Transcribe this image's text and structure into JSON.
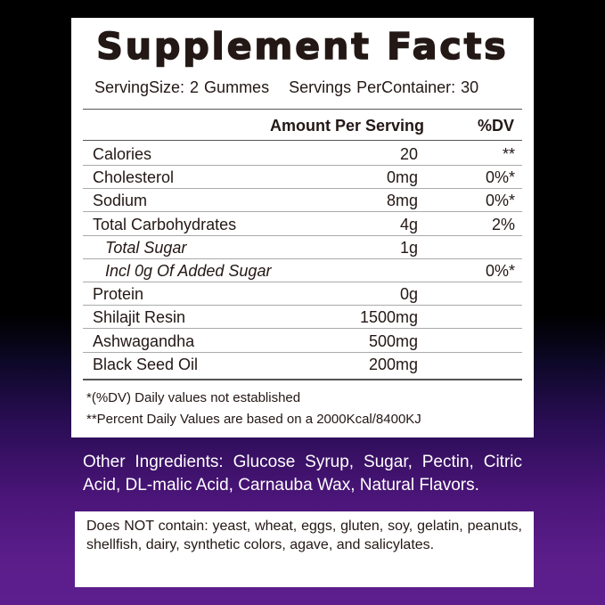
{
  "title": "Supplement Facts",
  "serving_size": "ServingSize: 2 Gummes",
  "servings_per_container": "Servings PerContainer: 30",
  "header": {
    "amount": "Amount Per Serving",
    "dv": "%DV"
  },
  "rows": [
    {
      "name": "Calories",
      "amount": "20",
      "dv": "**"
    },
    {
      "name": "Cholesterol",
      "amount": "0mg",
      "dv": "0%*"
    },
    {
      "name": "Sodium",
      "amount": "8mg",
      "dv": "0%*"
    },
    {
      "name": "Total Carbohydrates",
      "amount": "4g",
      "dv": "2%"
    },
    {
      "name": "Total Sugar",
      "amount": "1g",
      "dv": "",
      "indent": true
    },
    {
      "name": "Incl 0g Of Added Sugar",
      "amount": "",
      "dv": "0%*",
      "indent": true
    },
    {
      "name": "Protein",
      "amount": "0g",
      "dv": ""
    },
    {
      "name": "Shilajit Resin",
      "amount": "1500mg",
      "dv": ""
    },
    {
      "name": "Ashwagandha",
      "amount": "500mg",
      "dv": ""
    },
    {
      "name": "Black Seed Oil",
      "amount": "200mg",
      "dv": ""
    }
  ],
  "notes": [
    "*(%DV) Daily values not established",
    "**Percent Daily Values are based on a 2000Kcal/8400KJ"
  ],
  "other_ingredients": "Other Ingredients: Glucose Syrup, Sugar, Pectin, Citric Acid, DL-malic Acid, Carnauba Wax, Natural Flavors.",
  "allergen_free": "Does NOT contain: yeast, wheat, eggs, gluten, soy, gelatin, peanuts, shellfish, dairy, synthetic colors, agave, and salicylates."
}
